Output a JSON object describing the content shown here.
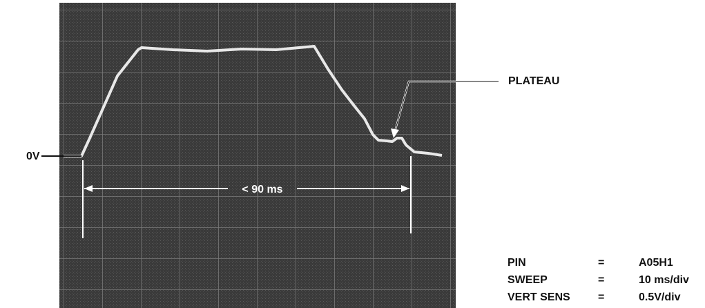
{
  "annotations": {
    "zero_volt": "0V",
    "plateau": "PLATEAU",
    "duration": "< 90 ms"
  },
  "settings": {
    "rows": [
      [
        "PIN",
        "=",
        "A05H1"
      ],
      [
        "SWEEP",
        "=",
        "10 ms/div"
      ],
      [
        "VERT SENS",
        "=",
        "0.5V/div"
      ]
    ]
  }
}
